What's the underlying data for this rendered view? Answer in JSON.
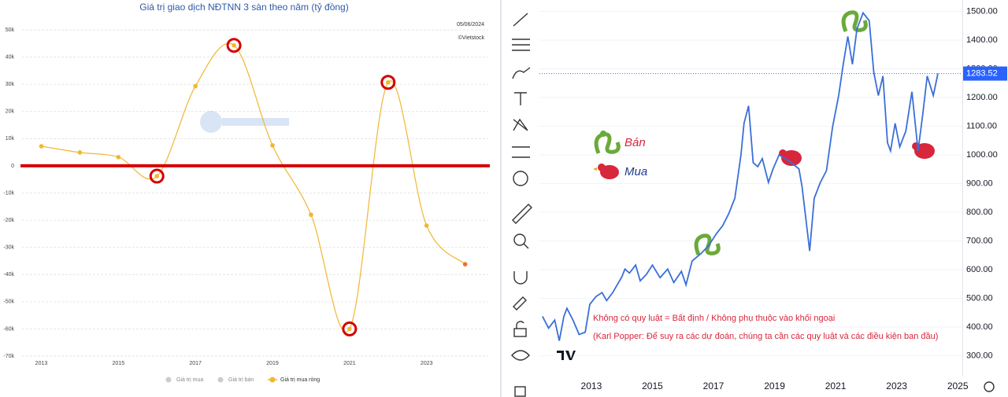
{
  "chart_data": [
    {
      "type": "line",
      "title": "Giá trị giao dịch NĐTNN 3 sàn theo năm (tỷ đồng)",
      "date": "05/06/2024",
      "source": "©Vietstock",
      "x": [
        2013,
        2014,
        2015,
        2016,
        2017,
        2018,
        2019,
        2020,
        2021,
        2022,
        2023,
        2024
      ],
      "series": [
        {
          "name": "Giá trị mua ròng",
          "color": "#f0b731",
          "values": [
            7200,
            4900,
            3200,
            -3800,
            29300,
            44300,
            7500,
            -18000,
            -60000,
            30700,
            -22000,
            -36200
          ]
        }
      ],
      "legend": [
        {
          "name": "Giá trị mua",
          "color": "#cccccc"
        },
        {
          "name": "Giá trị bán",
          "color": "#cccccc"
        },
        {
          "name": "Giá trị mua ròng",
          "color": "#f0b731"
        }
      ],
      "xlim": [
        2012.5,
        2024.6
      ],
      "xticks": [
        2013,
        2015,
        2017,
        2019,
        2021,
        2023
      ],
      "ylim": [
        -70000,
        50000
      ],
      "yticks": [
        {
          "value": -70000,
          "label": "-70k"
        },
        {
          "value": -60000,
          "label": "-60k"
        },
        {
          "value": -50000,
          "label": "-50k"
        },
        {
          "value": -40000,
          "label": "-40k"
        },
        {
          "value": -30000,
          "label": "-30k"
        },
        {
          "value": -20000,
          "label": "-20k"
        },
        {
          "value": -10000,
          "label": "-10k"
        },
        0,
        {
          "value": 10000,
          "label": "10k"
        },
        {
          "value": 20000,
          "label": "20k"
        },
        {
          "value": 30000,
          "label": "30k"
        },
        {
          "value": 40000,
          "label": "40k"
        },
        {
          "value": 50000,
          "label": "50k"
        }
      ],
      "grid": true
    },
    {
      "type": "line",
      "x": [
        2011.4,
        2011.6,
        2011.8,
        2011.95,
        2012.1,
        2012.2,
        2012.4,
        2012.6,
        2012.8,
        2012.95,
        2013.15,
        2013.35,
        2013.5,
        2013.7,
        2014.0,
        2014.1,
        2014.25,
        2014.45,
        2014.6,
        2014.8,
        2015.0,
        2015.25,
        2015.5,
        2015.7,
        2015.95,
        2016.1,
        2016.3,
        2016.6,
        2016.85,
        2017.1,
        2017.3,
        2017.5,
        2017.7,
        2017.9,
        2018.0,
        2018.15,
        2018.3,
        2018.45,
        2018.6,
        2018.8,
        2018.95,
        2019.15,
        2019.35,
        2019.55,
        2019.8,
        2019.9,
        2020.15,
        2020.3,
        2020.5,
        2020.7,
        2020.9,
        2021.1,
        2021.25,
        2021.4,
        2021.55,
        2021.7,
        2021.9,
        2022.1,
        2022.25,
        2022.4,
        2022.55,
        2022.7,
        2022.8,
        2022.95,
        2023.1,
        2023.3,
        2023.5,
        2023.7,
        2023.85,
        2024.0,
        2024.2,
        2024.35
      ],
      "series": [
        {
          "color": "#3a6fd8",
          "values": [
            437,
            396,
            424,
            352,
            437,
            465,
            424,
            374,
            382,
            479,
            506,
            520,
            492,
            520,
            575,
            602,
            588,
            616,
            561,
            583,
            616,
            572,
            602,
            555,
            594,
            547,
            630,
            657,
            685,
            726,
            753,
            795,
            849,
            1000,
            1110,
            1171,
            973,
            959,
            987,
            904,
            951,
            1000,
            987,
            973,
            951,
            890,
            665,
            849,
            904,
            945,
            1097,
            1207,
            1316,
            1413,
            1316,
            1440,
            1495,
            1468,
            1288,
            1207,
            1275,
            1042,
            1014,
            1110,
            1028,
            1083,
            1220,
            1014,
            1138,
            1275,
            1207,
            1283.52
          ]
        }
      ],
      "last_value": {
        "value": 1283.52,
        "label": "1283.52"
      },
      "xlim": [
        2011.3,
        2025.15
      ],
      "xticks": [
        2013,
        2015,
        2017,
        2019,
        2021,
        2023,
        2025
      ],
      "ylim": [
        230,
        1540
      ],
      "yticks": [
        {
          "value": 300,
          "label": "300.00"
        },
        {
          "value": 400,
          "label": "400.00"
        },
        {
          "value": 500,
          "label": "500.00"
        },
        {
          "value": 600,
          "label": "600.00"
        },
        {
          "value": 700,
          "label": "700.00"
        },
        {
          "value": 800,
          "label": "800.00"
        },
        {
          "value": 900,
          "label": "900.00"
        },
        {
          "value": 1000,
          "label": "1000.00"
        },
        {
          "value": 1100,
          "label": "1100.00"
        },
        {
          "value": 1200,
          "label": "1200.00"
        },
        {
          "value": 1300,
          "label": "1300.00"
        },
        {
          "value": 1400,
          "label": "1400.00"
        },
        {
          "value": 1500,
          "label": "1500.00"
        }
      ],
      "labels": {
        "sell": "Bán",
        "buy": "Mua"
      },
      "annotations": [
        "Không có quy luật = Bất định / Không phụ thuộc vào khối ngoại",
        "(Karl Popper: Để suy ra các dự đoán, chúng ta cần các quy luật và các điều kiện ban đầu)"
      ]
    }
  ]
}
